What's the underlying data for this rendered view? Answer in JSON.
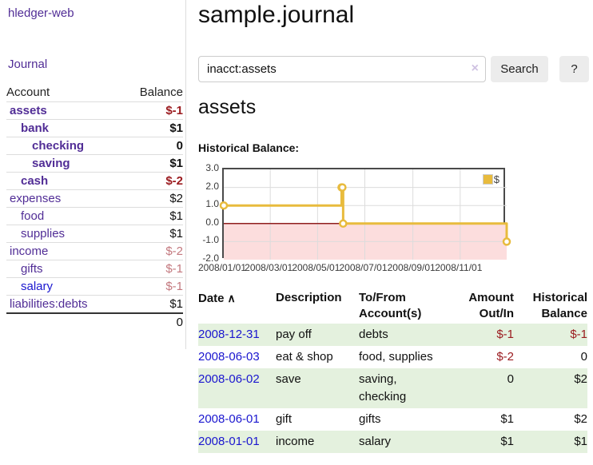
{
  "app": {
    "brand": "hledger-web"
  },
  "colors": {
    "purple_link": "#512d96",
    "blue_link": "#1a16cf",
    "negative": "#9b1c20",
    "muted_negative": "#c3787e",
    "text": "#111111",
    "stripe_green": "#e4f1de"
  },
  "sidebar": {
    "nav_journal": "Journal",
    "table_headers": {
      "account": "Account",
      "balance": "Balance"
    },
    "accounts": [
      {
        "name": "assets",
        "depth": 0,
        "bold": true,
        "link": "purple",
        "balance": "$-1",
        "tone": "negative"
      },
      {
        "name": "bank",
        "depth": 1,
        "bold": true,
        "link": "purple",
        "balance": "$1",
        "tone": "normal"
      },
      {
        "name": "checking",
        "depth": 2,
        "bold": true,
        "link": "purple",
        "balance": "0",
        "tone": "normal"
      },
      {
        "name": "saving",
        "depth": 2,
        "bold": true,
        "link": "purple",
        "balance": "$1",
        "tone": "normal"
      },
      {
        "name": "cash",
        "depth": 1,
        "bold": true,
        "link": "purple",
        "balance": "$-2",
        "tone": "negative"
      },
      {
        "name": "expenses",
        "depth": 0,
        "bold": false,
        "link": "purple",
        "balance": "$2",
        "tone": "normal"
      },
      {
        "name": "food",
        "depth": 1,
        "bold": false,
        "link": "purple",
        "balance": "$1",
        "tone": "normal"
      },
      {
        "name": "supplies",
        "depth": 1,
        "bold": false,
        "link": "purple",
        "balance": "$1",
        "tone": "normal"
      },
      {
        "name": "income",
        "depth": 0,
        "bold": false,
        "link": "purple",
        "balance": "$-2",
        "tone": "muted"
      },
      {
        "name": "gifts",
        "depth": 1,
        "bold": false,
        "link": "purple",
        "balance": "$-1",
        "tone": "muted"
      },
      {
        "name": "salary",
        "depth": 1,
        "bold": false,
        "link": "blue",
        "balance": "$-1",
        "tone": "muted"
      },
      {
        "name": "liabilities:debts",
        "depth": 0,
        "bold": false,
        "link": "purple",
        "balance": "$1",
        "tone": "normal"
      }
    ],
    "total": "0"
  },
  "header": {
    "title": "sample.journal"
  },
  "search": {
    "value": "inacct:assets",
    "clear_icon": "×",
    "button": "Search",
    "help_button": "?"
  },
  "account_page": {
    "heading": "assets",
    "chart_label": "Historical Balance:"
  },
  "chart_data": {
    "type": "line",
    "step": true,
    "title": "Historical Balance",
    "series": [
      {
        "name": "$",
        "color": "#e8bb3d",
        "points": [
          [
            "2008-01-01",
            1
          ],
          [
            "2008-06-01",
            2
          ],
          [
            "2008-06-02",
            2
          ],
          [
            "2008-06-03",
            0
          ],
          [
            "2008-12-31",
            -1
          ]
        ]
      }
    ],
    "x_range": [
      "2008-01-01",
      "2008-12-31"
    ],
    "ylim": [
      -2,
      3
    ],
    "yticks": [
      {
        "value": 3,
        "label": "3.0"
      },
      {
        "value": 2,
        "label": "2.0"
      },
      {
        "value": 1,
        "label": "1.0"
      },
      {
        "value": 0,
        "label": "0.0"
      },
      {
        "value": -1,
        "label": "-1.0"
      },
      {
        "value": -2,
        "label": "-2.0"
      }
    ],
    "xticks": [
      {
        "date": "2008-01-01",
        "label": "2008/01/01"
      },
      {
        "date": "2008-03-01",
        "label": "2008/03/01"
      },
      {
        "date": "2008-05-01",
        "label": "2008/05/01"
      },
      {
        "date": "2008-07-01",
        "label": "2008/07/01"
      },
      {
        "date": "2008-09-01",
        "label": "2008/09/01"
      },
      {
        "date": "2008-11-01",
        "label": "2008/11/01"
      }
    ],
    "legend": {
      "label": "$",
      "position": "top-right"
    },
    "colors": {
      "negative_region": "#fcdddd",
      "zero_line": "#8f1f1f",
      "grid": "#dcdcdc",
      "border": "#4a4a4a"
    }
  },
  "register": {
    "sort_icon": "∧",
    "headers": [
      {
        "label": "Date",
        "align": "left",
        "sort": true
      },
      {
        "label": "Description",
        "align": "left"
      },
      {
        "label": "To/From Account(s)",
        "align": "left"
      },
      {
        "label": "Amount Out/In",
        "align": "right"
      },
      {
        "label": "Historical Balance",
        "align": "right"
      }
    ],
    "rows": [
      {
        "date": "2008-12-31",
        "description": "pay off",
        "accounts": "debts",
        "amount": "$-1",
        "balance": "$-1",
        "shaded": true
      },
      {
        "date": "2008-06-03",
        "description": "eat & shop",
        "accounts": "food, supplies",
        "amount": "$-2",
        "balance": "0",
        "shaded": false
      },
      {
        "date": "2008-06-02",
        "description": "save",
        "accounts": [
          "saving,",
          "checking"
        ],
        "amount": "0",
        "balance": "$2",
        "shaded": true
      },
      {
        "date": "2008-06-01",
        "description": "gift",
        "accounts": "gifts",
        "amount": "$1",
        "balance": "$2",
        "shaded": false
      },
      {
        "date": "2008-01-01",
        "description": "income",
        "accounts": "salary",
        "amount": "$1",
        "balance": "$1",
        "shaded": true
      }
    ]
  }
}
